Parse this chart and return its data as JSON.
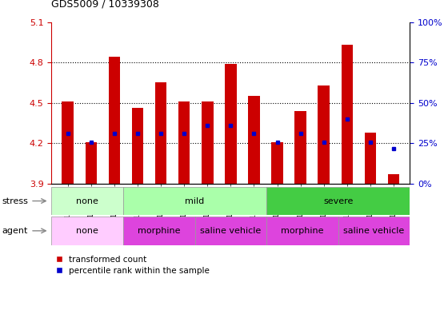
{
  "title": "GDS5009 / 10339308",
  "samples": [
    "GSM1217777",
    "GSM1217782",
    "GSM1217785",
    "GSM1217776",
    "GSM1217781",
    "GSM1217784",
    "GSM1217787",
    "GSM1217788",
    "GSM1217790",
    "GSM1217778",
    "GSM1217786",
    "GSM1217789",
    "GSM1217779",
    "GSM1217780",
    "GSM1217783"
  ],
  "bar_tops": [
    4.51,
    4.21,
    4.84,
    4.46,
    4.65,
    4.51,
    4.51,
    4.79,
    4.55,
    4.21,
    4.44,
    4.63,
    4.93,
    4.28,
    3.97
  ],
  "bar_bottom": 3.9,
  "blue_markers": [
    4.27,
    4.21,
    4.27,
    4.27,
    4.27,
    4.27,
    4.33,
    4.33,
    4.27,
    4.21,
    4.27,
    4.21,
    4.38,
    4.21,
    4.16
  ],
  "ylim": [
    3.9,
    5.1
  ],
  "yticks_left": [
    3.9,
    4.2,
    4.5,
    4.8,
    5.1
  ],
  "yticks_right": [
    0,
    25,
    50,
    75,
    100
  ],
  "ytick_labels_right": [
    "0%",
    "25%",
    "50%",
    "75%",
    "100%"
  ],
  "bar_color": "#cc0000",
  "blue_color": "#0000cc",
  "tick_color_left": "#cc0000",
  "tick_color_right": "#0000cc",
  "bar_width": 0.5,
  "stress_spans": [
    {
      "label": "none",
      "start": 0,
      "end": 3,
      "color": "#ccffcc"
    },
    {
      "label": "mild",
      "start": 3,
      "end": 9,
      "color": "#aaffaa"
    },
    {
      "label": "severe",
      "start": 9,
      "end": 15,
      "color": "#44cc44"
    }
  ],
  "agent_spans": [
    {
      "label": "none",
      "start": 0,
      "end": 3,
      "color": "#ffccff"
    },
    {
      "label": "morphine",
      "start": 3,
      "end": 6,
      "color": "#dd44dd"
    },
    {
      "label": "saline vehicle",
      "start": 6,
      "end": 9,
      "color": "#dd44dd"
    },
    {
      "label": "morphine",
      "start": 9,
      "end": 12,
      "color": "#dd44dd"
    },
    {
      "label": "saline vehicle",
      "start": 12,
      "end": 15,
      "color": "#dd44dd"
    }
  ]
}
